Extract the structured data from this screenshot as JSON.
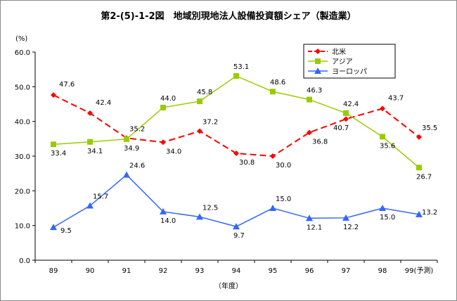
{
  "chart_data": {
    "type": "line",
    "title": "第2-(5)-1-2図　地域別現地法人設備投資額シェア（製造業）",
    "ylabel": "(%)",
    "xlabel": "（年度）",
    "categories": [
      "89",
      "90",
      "91",
      "92",
      "93",
      "94",
      "95",
      "96",
      "97",
      "98",
      "99(予測)"
    ],
    "ylim": [
      0,
      60
    ],
    "yticks": [
      "0.0",
      "10.0",
      "20.0",
      "30.0",
      "40.0",
      "50.0",
      "60.0"
    ],
    "grid": false,
    "legend_position": "top-right",
    "series": [
      {
        "name": "北米",
        "color": "#ff0000",
        "marker": "diamond",
        "dash": true,
        "values": [
          47.6,
          42.4,
          35.2,
          34.0,
          37.2,
          30.8,
          30.0,
          36.8,
          40.7,
          43.7,
          35.5
        ],
        "labels": [
          "47.6",
          "42.4",
          "35.2",
          "34.0",
          "37.2",
          "30.8",
          "30.0",
          "36.8",
          "40.7",
          "43.7",
          "35.5"
        ]
      },
      {
        "name": "アジア",
        "color": "#99cc00",
        "marker": "square",
        "dash": false,
        "values": [
          33.4,
          34.1,
          34.9,
          44.0,
          45.8,
          53.1,
          48.6,
          46.3,
          42.4,
          35.6,
          26.7
        ],
        "labels": [
          "33.4",
          "34.1",
          "34.9",
          "44.0",
          "45.8",
          "53.1",
          "48.6",
          "46.3",
          "42.4",
          "35.6",
          "26.7"
        ]
      },
      {
        "name": "ヨーロッパ",
        "color": "#3366ff",
        "marker": "triangle",
        "dash": false,
        "values": [
          9.5,
          15.7,
          24.6,
          14.0,
          12.5,
          9.7,
          15.0,
          12.1,
          12.2,
          15.0,
          13.2
        ],
        "labels": [
          "9.5",
          "15.7",
          "24.6",
          "14.0",
          "12.5",
          "9.7",
          "15.0",
          "12.1",
          "12.2",
          "15.0",
          "13.2"
        ]
      }
    ]
  }
}
